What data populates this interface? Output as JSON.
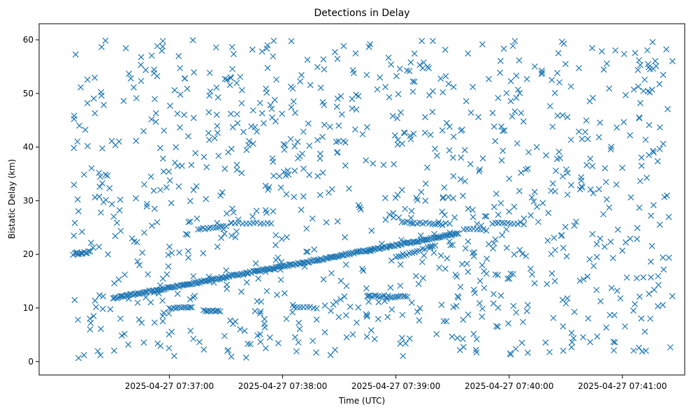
{
  "chart_data": {
    "type": "scatter",
    "title": "Detections in Delay",
    "xlabel": "Time (UTC)",
    "ylabel": "Bistatic Delay (km)",
    "x_ticks": [
      "2025-04-27 07:37:00",
      "2025-04-27 07:38:00",
      "2025-04-27 07:39:00",
      "2025-04-27 07:40:00",
      "2025-04-27 07:41:00"
    ],
    "y_ticks": [
      "0",
      "10",
      "20",
      "30",
      "40",
      "50",
      "60"
    ],
    "xlim": [
      "2025-04-27 07:35:51",
      "2025-04-27 07:41:33"
    ],
    "ylim": [
      -2.5,
      63
    ],
    "grid": false,
    "marker": "x",
    "color": "#1f77b4",
    "series": [
      {
        "tracks": [
          {
            "x_start": "2025-04-27 07:36:09",
            "x_end": "2025-04-27 07:36:18",
            "y_start": 20.0,
            "y_end": 20.5,
            "n": 12
          },
          {
            "x_start": "2025-04-27 07:36:30",
            "x_end": "2025-04-27 07:39:33",
            "y_start": 11.8,
            "y_end": 23.9,
            "n": 240
          },
          {
            "x_start": "2025-04-27 07:37:15",
            "x_end": "2025-04-27 07:37:30",
            "y_start": 24.7,
            "y_end": 25.3,
            "n": 12
          },
          {
            "x_start": "2025-04-27 07:37:33",
            "x_end": "2025-04-27 07:37:54",
            "y_start": 25.7,
            "y_end": 25.9,
            "n": 12
          },
          {
            "x_start": "2025-04-27 07:37:00",
            "x_end": "2025-04-27 07:37:12",
            "y_start": 10.0,
            "y_end": 10.0,
            "n": 12
          },
          {
            "x_start": "2025-04-27 07:37:18",
            "x_end": "2025-04-27 07:37:27",
            "y_start": 9.5,
            "y_end": 9.3,
            "n": 10
          },
          {
            "x_start": "2025-04-27 07:38:06",
            "x_end": "2025-04-27 07:38:18",
            "y_start": 10.2,
            "y_end": 10.0,
            "n": 8
          },
          {
            "x_start": "2025-04-27 07:38:45",
            "x_end": "2025-04-27 07:39:06",
            "y_start": 12.2,
            "y_end": 12.1,
            "n": 20
          },
          {
            "x_start": "2025-04-27 07:39:00",
            "x_end": "2025-04-27 07:39:21",
            "y_start": 19.5,
            "y_end": 21.6,
            "n": 16
          },
          {
            "x_start": "2025-04-27 07:39:03",
            "x_end": "2025-04-27 07:39:24",
            "y_start": 26.0,
            "y_end": 25.7,
            "n": 14
          },
          {
            "x_start": "2025-04-27 07:39:36",
            "x_end": "2025-04-27 07:39:48",
            "y_start": 24.7,
            "y_end": 24.5,
            "n": 8
          },
          {
            "x_start": "2025-04-27 07:39:51",
            "x_end": "2025-04-27 07:40:06",
            "y_start": 25.8,
            "y_end": 25.8,
            "n": 10
          }
        ]
      }
    ]
  }
}
